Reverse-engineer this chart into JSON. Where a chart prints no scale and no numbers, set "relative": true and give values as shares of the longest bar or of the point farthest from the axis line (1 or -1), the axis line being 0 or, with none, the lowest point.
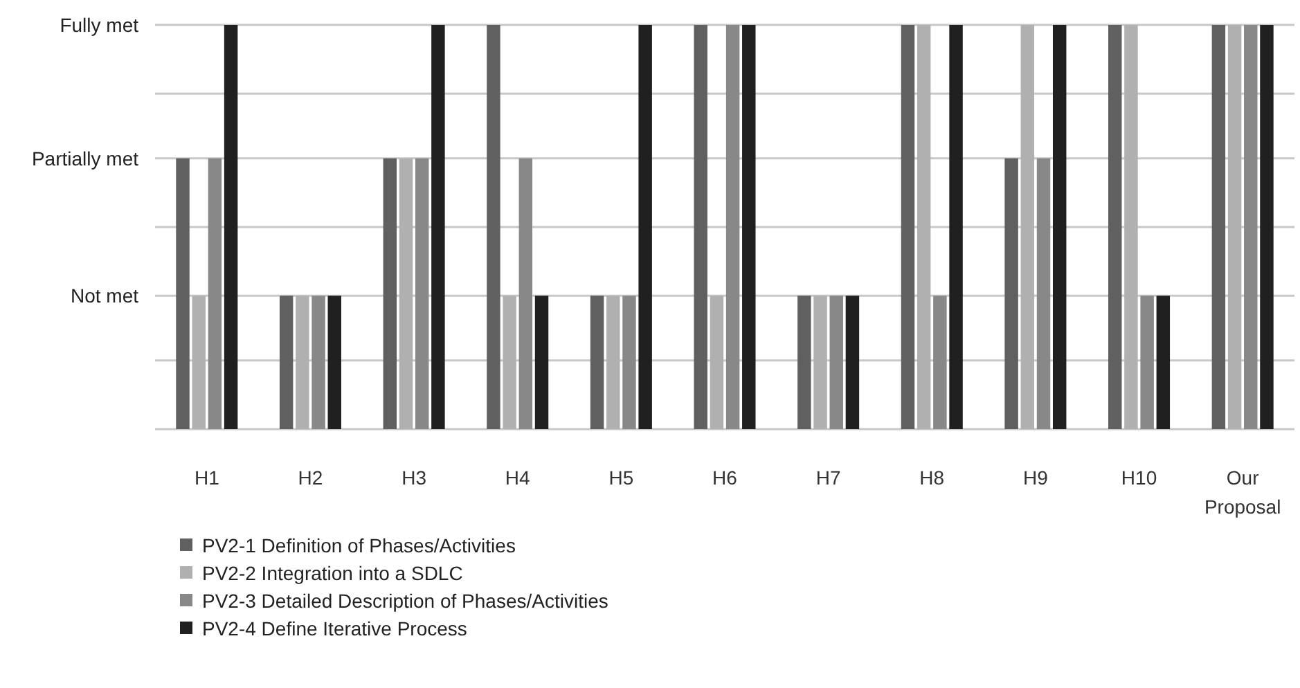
{
  "chart_data": {
    "type": "bar",
    "categories": [
      "H1",
      "H2",
      "H3",
      "H4",
      "H5",
      "H6",
      "H7",
      "H8",
      "H9",
      "H10",
      "Our Proposal"
    ],
    "series": [
      {
        "name": "PV2-1 Definition of Phases/Activities",
        "color": "#606060",
        "values": [
          0.67,
          0.33,
          0.67,
          1,
          0.33,
          1,
          0.33,
          1,
          0.67,
          1,
          1
        ]
      },
      {
        "name": "PV2-2 Integration into a SDLC",
        "color": "#b0b0b0",
        "values": [
          0.33,
          0.33,
          0.67,
          0.33,
          0.33,
          0.33,
          0.33,
          1,
          1,
          1,
          1
        ]
      },
      {
        "name": "PV2-3 Detailed Description of Phases/Activities",
        "color": "#888888",
        "values": [
          0.67,
          0.33,
          0.67,
          0.67,
          0.33,
          1,
          0.33,
          0.33,
          0.67,
          0.33,
          1
        ]
      },
      {
        "name": "PV2-4 Define Iterative Process",
        "color": "#202020",
        "values": [
          1,
          0.33,
          1,
          0.33,
          1,
          1,
          0.33,
          1,
          1,
          0.33,
          1
        ]
      }
    ],
    "relative": true,
    "ref_lines": [
      {
        "axis": "y",
        "value": 0.17,
        "label": null,
        "color": "#c8c8c8"
      },
      {
        "axis": "y",
        "value": 0.33,
        "label": "Not met",
        "color": "#c8c8c8"
      },
      {
        "axis": "y",
        "value": 0.5,
        "label": null,
        "color": "#c8c8c8"
      },
      {
        "axis": "y",
        "value": 0.67,
        "label": "Partially met",
        "color": "#c8c8c8"
      },
      {
        "axis": "y",
        "value": 0.83,
        "label": null,
        "color": "#c8c8c8"
      },
      {
        "axis": "y",
        "value": 1,
        "label": "Fully met",
        "color": "#c8c8c8"
      }
    ],
    "legend": "bottom left"
  }
}
